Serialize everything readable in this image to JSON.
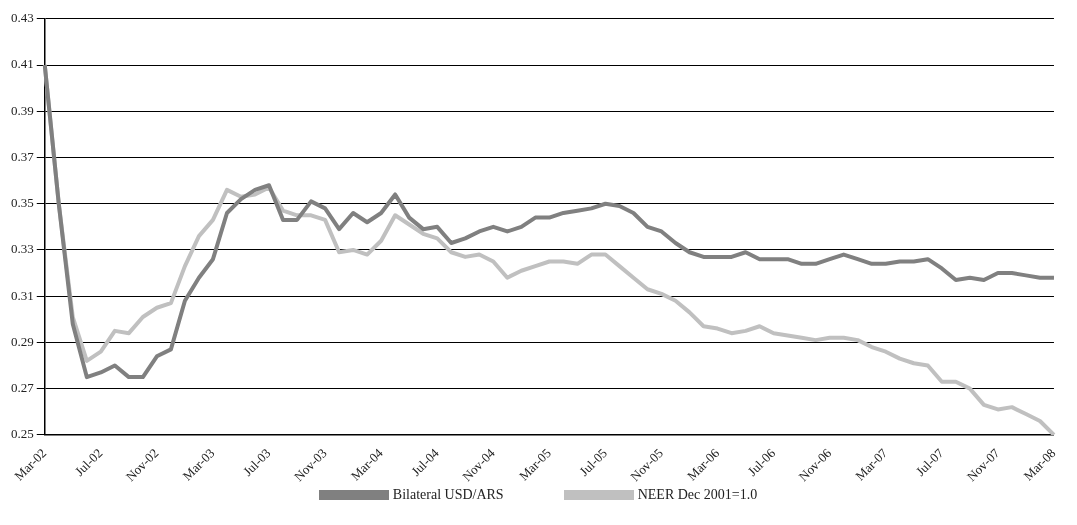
{
  "chart_data": {
    "type": "line",
    "categories": [
      "Mar-02",
      null,
      null,
      null,
      "Jul-02",
      null,
      null,
      null,
      "Nov-02",
      null,
      null,
      null,
      "Mar-03",
      null,
      null,
      null,
      "Jul-03",
      null,
      null,
      null,
      "Nov-03",
      null,
      null,
      null,
      "Mar-04",
      null,
      null,
      null,
      "Jul-04",
      null,
      null,
      null,
      "Nov-04",
      null,
      null,
      null,
      "Mar-05",
      null,
      null,
      null,
      "Jul-05",
      null,
      null,
      null,
      "Nov-05",
      null,
      null,
      null,
      "Mar-06",
      null,
      null,
      null,
      "Jul-06",
      null,
      null,
      null,
      "Nov-06",
      null,
      null,
      null,
      "Mar-07",
      null,
      null,
      null,
      "Jul-07",
      null,
      null,
      null,
      "Nov-07",
      null,
      null,
      null,
      "Mar-08"
    ],
    "series": [
      {
        "name": "Bilateral USD/ARS",
        "color": "#808080",
        "values": [
          0.41,
          0.35,
          0.298,
          0.275,
          0.277,
          0.28,
          0.275,
          0.275,
          0.284,
          0.287,
          0.308,
          0.318,
          0.326,
          0.346,
          0.352,
          0.356,
          0.358,
          0.343,
          0.343,
          0.351,
          0.348,
          0.339,
          0.346,
          0.342,
          0.346,
          0.354,
          0.344,
          0.339,
          0.34,
          0.333,
          0.335,
          0.338,
          0.34,
          0.338,
          0.34,
          0.344,
          0.344,
          0.346,
          0.347,
          0.348,
          0.35,
          0.349,
          0.346,
          0.34,
          0.338,
          0.333,
          0.329,
          0.327,
          0.327,
          0.327,
          0.329,
          0.326,
          0.326,
          0.326,
          0.324,
          0.324,
          0.326,
          0.328,
          0.326,
          0.324,
          0.324,
          0.325,
          0.325,
          0.326,
          0.322,
          0.317,
          0.318,
          0.317,
          0.32,
          0.32,
          0.319,
          0.318,
          0.318
        ]
      },
      {
        "name": "NEER Dec 2001=1.0",
        "color": "#c0c0c0",
        "values": [
          0.41,
          0.35,
          0.301,
          0.282,
          0.286,
          0.295,
          0.294,
          0.301,
          0.305,
          0.307,
          0.323,
          0.336,
          0.343,
          0.356,
          0.353,
          0.354,
          0.357,
          0.347,
          0.345,
          0.345,
          0.343,
          0.329,
          0.33,
          0.328,
          0.334,
          0.345,
          0.341,
          0.337,
          0.335,
          0.329,
          0.327,
          0.328,
          0.325,
          0.318,
          0.321,
          0.323,
          0.325,
          0.325,
          0.324,
          0.328,
          0.328,
          0.323,
          0.318,
          0.313,
          0.311,
          0.308,
          0.303,
          0.297,
          0.296,
          0.294,
          0.295,
          0.297,
          0.294,
          0.293,
          0.292,
          0.291,
          0.292,
          0.292,
          0.291,
          0.288,
          0.286,
          0.283,
          0.281,
          0.28,
          0.273,
          0.273,
          0.27,
          0.263,
          0.261,
          0.262,
          0.259,
          0.256,
          0.25
        ]
      }
    ],
    "ylim": [
      0.25,
      0.43
    ],
    "yticks": [
      0.25,
      0.27,
      0.29,
      0.31,
      0.33,
      0.35,
      0.37,
      0.39,
      0.41,
      0.43
    ],
    "grid": "y",
    "legend": "bottom",
    "marker": "none",
    "line_style": "solid"
  }
}
